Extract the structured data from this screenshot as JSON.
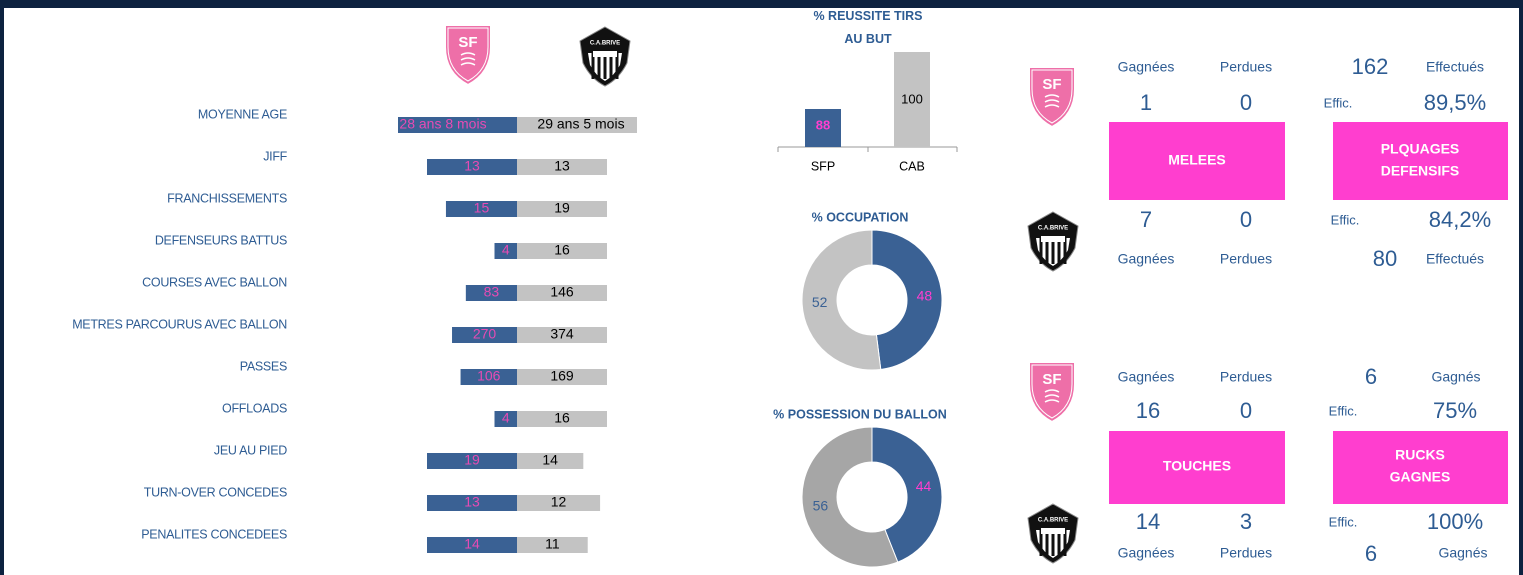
{
  "logos": {
    "sfp": "SF",
    "cab": "C.A.BRIVE"
  },
  "chart_data": [
    {
      "type": "butterfly",
      "age": {
        "label": "MOYENNE AGE",
        "sfp": "28 ans 8 mois",
        "cab": "29 ans 5 mois"
      },
      "categories": [
        "JIFF",
        "FRANCHISSEMENTS",
        "DEFENSEURS BATTUS",
        "COURSES AVEC BALLON",
        "METRES PARCOURUS AVEC BALLON",
        "PASSES",
        "OFFLOADS",
        "JEU AU PIED",
        "TURN-OVER CONCEDES",
        "PENALITES CONCEDEES"
      ],
      "series": [
        {
          "color": "#3a6194",
          "values": [
            13,
            15,
            4,
            83,
            270,
            106,
            4,
            19,
            13,
            14
          ]
        },
        {
          "color": "#c3c3c3",
          "values": [
            13,
            19,
            16,
            146,
            374,
            169,
            16,
            14,
            12,
            11
          ]
        }
      ]
    },
    {
      "type": "bar",
      "title": "% REUSSITE TIRS AU BUT",
      "categories": [
        "SFP",
        "CAB"
      ],
      "values": [
        88,
        100
      ],
      "colors": [
        "#3a6194",
        "#c3c3c3"
      ],
      "ylim": [
        80,
        100
      ]
    },
    {
      "type": "pie",
      "title": "% OCCUPATION",
      "values": [
        48,
        52
      ],
      "colors": [
        "#3a6194",
        "#c3c3c3"
      ]
    },
    {
      "type": "pie",
      "title": "% POSSESSION DU BALLON",
      "values": [
        44,
        56
      ],
      "colors": [
        "#3a6194",
        "#a6a6a6"
      ]
    }
  ],
  "melees": {
    "title": "MELEES",
    "head": [
      "Gagnées",
      "Perdues"
    ],
    "sfp": [
      1,
      0
    ],
    "cab": [
      7,
      0
    ],
    "foot": [
      "Gagnées",
      "Perdues"
    ]
  },
  "plaquages": {
    "title": [
      "PLQUAGES",
      "DEFENSIFS"
    ],
    "sfp": {
      "count": 162,
      "count_label": "Effectués",
      "effic_label": "Effic.",
      "effic": "89,5%"
    },
    "cab": {
      "count": 80,
      "count_label": "Effectués",
      "effic_label": "Effic.",
      "effic": "84,2%"
    }
  },
  "touches": {
    "title": "TOUCHES",
    "head": [
      "Gagnées",
      "Perdues"
    ],
    "sfp": [
      16,
      0
    ],
    "cab": [
      14,
      3
    ],
    "foot": [
      "Gagnées",
      "Perdues"
    ]
  },
  "rucks": {
    "title": [
      "RUCKS",
      "GAGNES"
    ],
    "sfp": {
      "count": 6,
      "count_label": "Gagnés",
      "effic_label": "Effic.",
      "effic": "75%"
    },
    "cab": {
      "count": 6,
      "count_label": "Gagnés",
      "effic_label": "Effic.",
      "effic": "100%"
    }
  }
}
